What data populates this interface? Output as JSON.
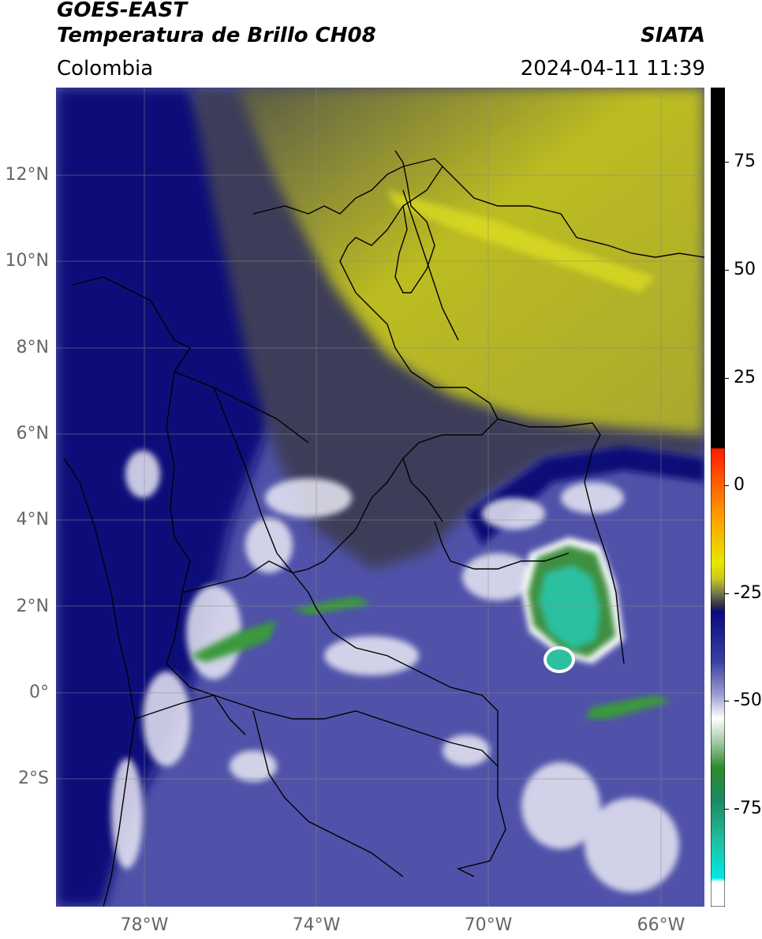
{
  "header": {
    "title_line1": "GOES-EAST",
    "title_line2": "Temperatura de Brillo CH08",
    "brand": "SIATA",
    "region": "Colombia",
    "timestamp": "2024-04-11 11:39"
  },
  "map": {
    "lat_labels": [
      {
        "text": "12°N",
        "lat": 12
      },
      {
        "text": "10°N",
        "lat": 10
      },
      {
        "text": "8°N",
        "lat": 8
      },
      {
        "text": "6°N",
        "lat": 6
      },
      {
        "text": "4°N",
        "lat": 4
      },
      {
        "text": "2°N",
        "lat": 2
      },
      {
        "text": "0°",
        "lat": 0
      },
      {
        "text": "2°S",
        "lat": -2
      }
    ],
    "lon_labels": [
      {
        "text": "78°W",
        "lon": -78
      },
      {
        "text": "74°W",
        "lon": -74
      },
      {
        "text": "70°W",
        "lon": -70
      },
      {
        "text": "66°W",
        "lon": -66
      }
    ],
    "extent": {
      "lon_min": -80,
      "lon_max": -65,
      "lat_min": -4.3,
      "lat_max": 14.7
    }
  },
  "colorbar": {
    "labels": [
      {
        "text": "75",
        "value": 75
      },
      {
        "text": "50",
        "value": 50
      },
      {
        "text": "25",
        "value": 25
      },
      {
        "text": "0",
        "value": 0
      },
      {
        "text": "-25",
        "value": -25
      },
      {
        "text": "-50",
        "value": -50
      },
      {
        "text": "-75",
        "value": -75
      }
    ],
    "range": [
      -100,
      90
    ],
    "colors": {
      "above": "#000000",
      "warm": "#ff2200",
      "orange": "#ffaa00",
      "yellow": "#dddd00",
      "olive": "#555540",
      "navy": "#0a0a80",
      "blue": "#4848a8",
      "white": "#ffffff",
      "green": "#2e8b2e",
      "teal": "#20c0a0",
      "cyan": "#00e0e0"
    }
  }
}
